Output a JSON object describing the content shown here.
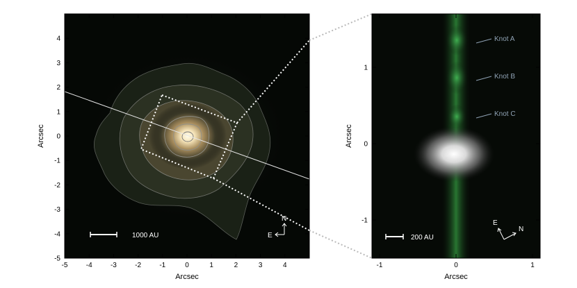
{
  "left_panel": {
    "xlabel": "Arcsec",
    "ylabel": "Arcsec",
    "x_ticks": [
      "-5",
      "-4",
      "-3",
      "-2",
      "-1",
      "0",
      "1",
      "2",
      "3",
      "4"
    ],
    "y_ticks": [
      "4",
      "3",
      "2",
      "1",
      "0",
      "-1",
      "-2",
      "-3",
      "-4",
      "-5"
    ],
    "x_range": [
      -5,
      5
    ],
    "y_range": [
      -5,
      5
    ],
    "scale_bar_label": "1000 AU",
    "compass": {
      "north": "N",
      "east": "E"
    }
  },
  "right_panel": {
    "xlabel": "Arcsec",
    "ylabel": "Arcsec",
    "x_ticks": [
      "-1",
      "0",
      "1"
    ],
    "y_ticks": [
      "1",
      "0",
      "-1"
    ],
    "x_range": [
      -1.1,
      1.1
    ],
    "y_range": [
      -1.5,
      1.7
    ],
    "scale_bar_label": "200 AU",
    "compass": {
      "north": "N",
      "east": "E"
    },
    "knots": [
      "Knot A",
      "Knot B",
      "Knot C"
    ]
  },
  "colors": {
    "image_background": "#050805",
    "jet_green": "#2f8a3a",
    "contour": "#8a8a8a",
    "knot_label": "#8fa2b4",
    "connector": "#b9b9b9"
  }
}
